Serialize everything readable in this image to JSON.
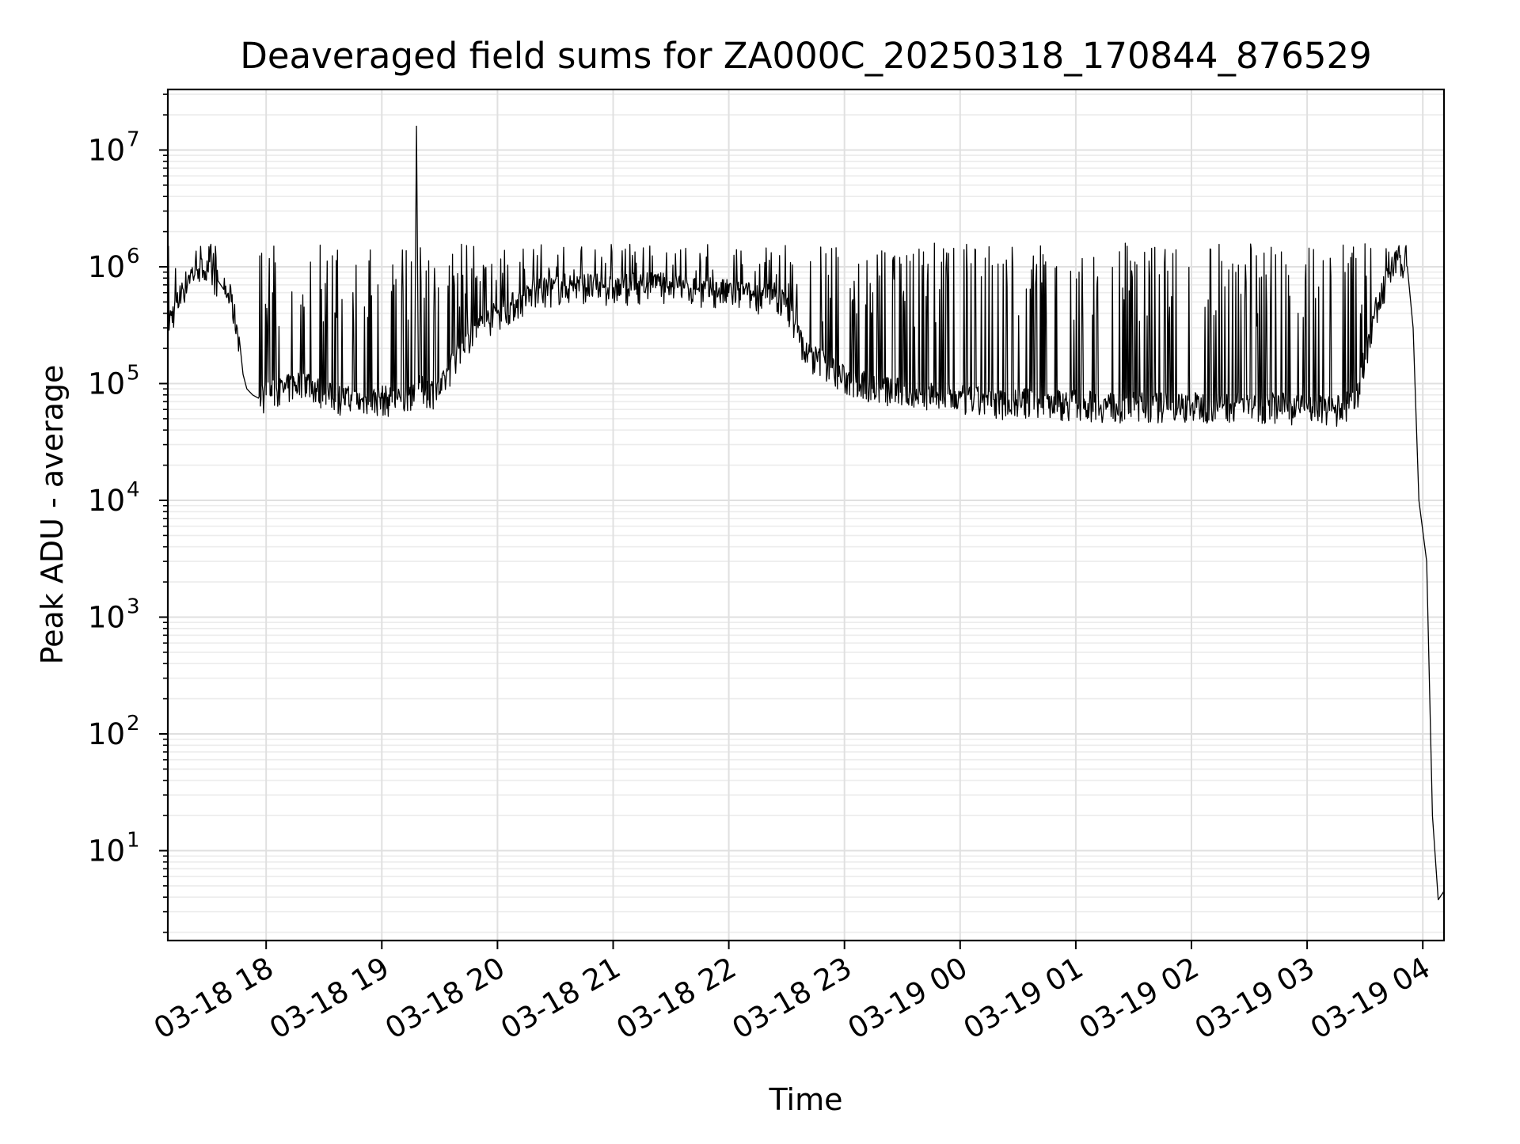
{
  "chart_data": {
    "type": "line",
    "title": "Deaveraged field sums for ZA000C_20250318_170844_876529",
    "xlabel": "Time",
    "ylabel": "Peak ADU - average",
    "yscale": "log",
    "ylim": [
      1.7,
      33000000
    ],
    "xlim": [
      "03-18 17:09",
      "03-19 04:11"
    ],
    "grid": true,
    "x_ticks": [
      "03-18 18",
      "03-18 19",
      "03-18 20",
      "03-18 21",
      "03-18 22",
      "03-18 23",
      "03-19 00",
      "03-19 01",
      "03-19 02",
      "03-19 03",
      "03-19 04"
    ],
    "y_ticks": [
      {
        "value": 10,
        "base": "10",
        "exp": "1"
      },
      {
        "value": 100,
        "base": "10",
        "exp": "2"
      },
      {
        "value": 1000,
        "base": "10",
        "exp": "3"
      },
      {
        "value": 10000,
        "base": "10",
        "exp": "4"
      },
      {
        "value": 100000,
        "base": "10",
        "exp": "5"
      },
      {
        "value": 1000000,
        "base": "10",
        "exp": "6"
      },
      {
        "value": 10000000,
        "base": "10",
        "exp": "7"
      }
    ],
    "series_color": "#000000",
    "series": [
      {
        "x": [
          "03-18 17:09",
          "03-18 17:15",
          "03-18 17:20",
          "03-18 17:25",
          "03-18 17:30",
          "03-18 17:35",
          "03-18 17:38",
          "03-18 17:42",
          "03-18 17:46",
          "03-18 17:48",
          "03-18 17:50",
          "03-18 17:53",
          "03-18 17:56",
          "03-18 18:00",
          "03-18 18:10",
          "03-18 18:20",
          "03-18 18:30",
          "03-18 18:40",
          "03-18 18:50",
          "03-18 19:00",
          "03-18 19:10",
          "03-18 19:17",
          "03-18 19:18",
          "03-18 19:19",
          "03-18 19:30",
          "03-18 19:40",
          "03-18 19:50",
          "03-18 20:00",
          "03-18 20:20",
          "03-18 20:40",
          "03-18 21:00",
          "03-18 21:20",
          "03-18 21:40",
          "03-18 22:00",
          "03-18 22:20",
          "03-18 22:30",
          "03-18 22:40",
          "03-18 22:50",
          "03-18 23:00",
          "03-18 23:20",
          "03-18 23:40",
          "03-19 00:00",
          "03-19 00:20",
          "03-19 00:40",
          "03-19 01:00",
          "03-19 01:20",
          "03-19 01:40",
          "03-19 02:00",
          "03-19 02:20",
          "03-19 02:40",
          "03-19 03:00",
          "03-19 03:15",
          "03-19 03:25",
          "03-19 03:35",
          "03-19 03:43",
          "03-19 03:48",
          "03-19 03:52",
          "03-19 03:55",
          "03-19 03:58",
          "03-19 04:02",
          "03-19 04:05",
          "03-19 04:08",
          "03-19 04:11"
        ],
        "y": [
          330000,
          520000,
          850000,
          960000,
          900000,
          760000,
          640000,
          500000,
          250000,
          120000,
          90000,
          80000,
          75000,
          80000,
          90000,
          110000,
          80000,
          75000,
          70000,
          75000,
          70000,
          90000,
          16000000,
          90000,
          85000,
          200000,
          300000,
          400000,
          600000,
          700000,
          650000,
          700000,
          650000,
          600000,
          550000,
          500000,
          180000,
          150000,
          110000,
          90000,
          80000,
          75000,
          70000,
          70000,
          68000,
          65000,
          65000,
          65000,
          66000,
          65000,
          62000,
          60000,
          70000,
          400000,
          900000,
          1200000,
          1000000,
          300000,
          10000,
          3000,
          20,
          3.8,
          4.5
        ]
      }
    ]
  }
}
